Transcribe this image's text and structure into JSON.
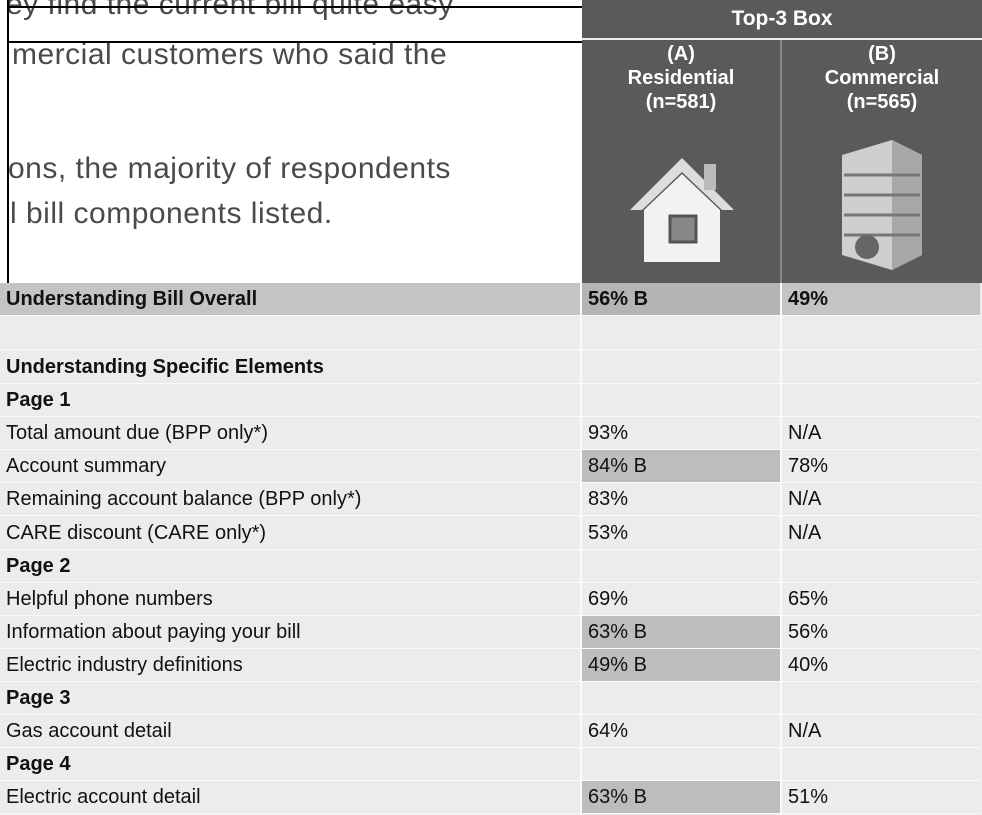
{
  "intro_text": [
    "ey find the current bill quite easy",
    "mercial customers who said the",
    "ons, the majority of respondents",
    "l bill components listed."
  ],
  "table": {
    "group_header": "Top-3 Box",
    "columns": [
      {
        "letter": "(A)",
        "name": "Residential",
        "n": "(n=581)"
      },
      {
        "letter": "(B)",
        "name": "Commercial",
        "n": "(n=565)"
      }
    ],
    "overall": {
      "label": "Understanding Bill Overall",
      "cells": [
        "56% B",
        "49%"
      ]
    },
    "rows": [
      {
        "label": "Understanding Specific Elements",
        "bold": true
      },
      {
        "label": "Page 1",
        "bold": true
      },
      {
        "label": "Total amount due (BPP only*)",
        "cells": [
          "93%",
          "N/A"
        ]
      },
      {
        "label": "Account summary",
        "cells": [
          "84% B",
          "78%"
        ],
        "shaded": true
      },
      {
        "label": "Remaining account balance (BPP only*)",
        "cells": [
          "83%",
          "N/A"
        ]
      },
      {
        "label": "CARE discount (CARE only*)",
        "cells": [
          "53%",
          "N/A"
        ]
      },
      {
        "label": "Page 2",
        "bold": true
      },
      {
        "label": "Helpful phone numbers",
        "cells": [
          "69%",
          "65%"
        ]
      },
      {
        "label": "Information about paying your bill",
        "cells": [
          "63% B",
          "56%"
        ],
        "shaded": true
      },
      {
        "label": "Electric industry definitions",
        "cells": [
          "49% B",
          "40%"
        ],
        "shaded": true
      },
      {
        "label": "Page 3",
        "bold": true
      },
      {
        "label": "Gas account detail",
        "cells": [
          "64%",
          "N/A"
        ]
      },
      {
        "label": "Page 4",
        "bold": true
      },
      {
        "label": "Electric account detail",
        "cells": [
          "63% B",
          "51%"
        ],
        "shaded": true
      }
    ]
  }
}
